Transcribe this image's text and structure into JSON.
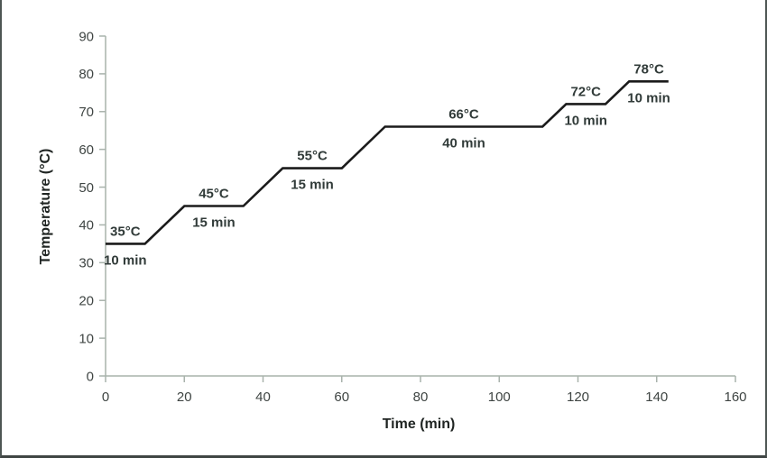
{
  "figure": {
    "background_color": "#ffffff",
    "border_color": "#4e5654"
  },
  "chart_data": {
    "type": "line",
    "title": "",
    "xlabel": "Time (min)",
    "ylabel": "Temperature (°C)",
    "xlim": [
      0,
      160
    ],
    "ylim": [
      0,
      90
    ],
    "x_ticks": [
      0,
      20,
      40,
      60,
      80,
      100,
      120,
      140,
      160
    ],
    "y_ticks": [
      0,
      10,
      20,
      30,
      40,
      50,
      60,
      70,
      80,
      90
    ],
    "grid": false,
    "legend": "none",
    "axis_color": "#a9b3ac",
    "tick_text_color": "#3f4543",
    "line_color": "#1b1b1b",
    "annotation_color": "#313b39",
    "series": [
      {
        "name": "temperature-profile",
        "points": [
          [
            0,
            35
          ],
          [
            10,
            35
          ],
          [
            20,
            45
          ],
          [
            35,
            45
          ],
          [
            45,
            55
          ],
          [
            60,
            55
          ],
          [
            71,
            66
          ],
          [
            111,
            66
          ],
          [
            117,
            72
          ],
          [
            127,
            72
          ],
          [
            133,
            78
          ],
          [
            143,
            78
          ]
        ]
      }
    ],
    "steps": [
      {
        "temp_c": 35,
        "duration_min": 10,
        "temp_label": "35°C",
        "duration_label": "10 min",
        "t_start": 0,
        "t_end": 10
      },
      {
        "temp_c": 45,
        "duration_min": 15,
        "temp_label": "45°C",
        "duration_label": "15 min",
        "t_start": 20,
        "t_end": 35
      },
      {
        "temp_c": 55,
        "duration_min": 15,
        "temp_label": "55°C",
        "duration_label": "15 min",
        "t_start": 45,
        "t_end": 60
      },
      {
        "temp_c": 66,
        "duration_min": 40,
        "temp_label": "66°C",
        "duration_label": "40 min",
        "t_start": 71,
        "t_end": 111
      },
      {
        "temp_c": 72,
        "duration_min": 10,
        "temp_label": "72°C",
        "duration_label": "10 min",
        "t_start": 117,
        "t_end": 127
      },
      {
        "temp_c": 78,
        "duration_min": 10,
        "temp_label": "78°C",
        "duration_label": "10 min",
        "t_start": 133,
        "t_end": 143
      }
    ]
  }
}
